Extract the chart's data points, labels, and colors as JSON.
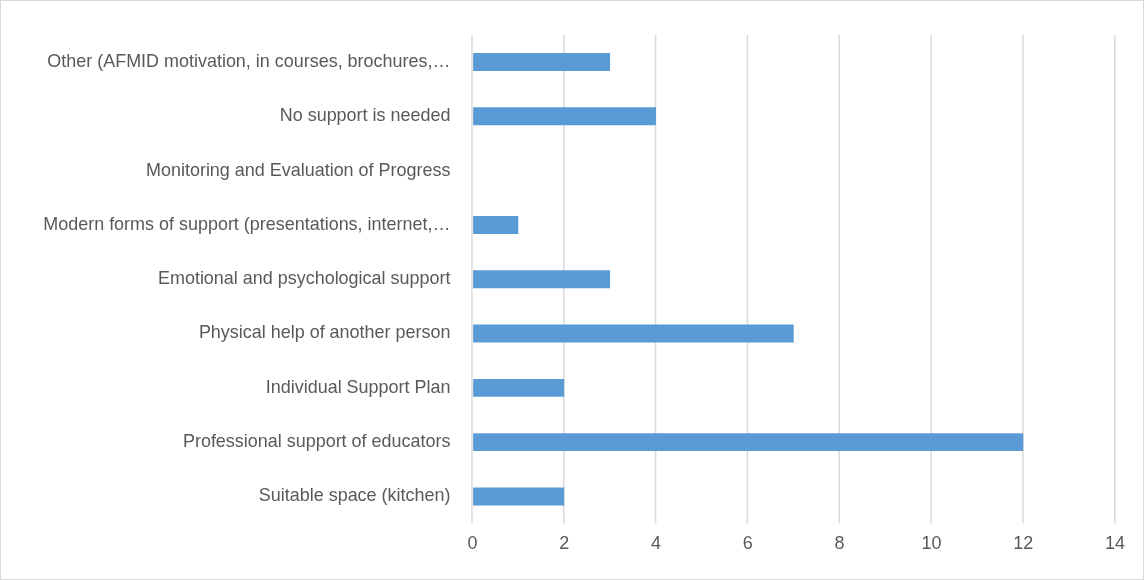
{
  "chart_data": {
    "type": "bar",
    "orientation": "horizontal",
    "categories": [
      "Other (AFMID motivation, in courses, brochures,…",
      "No support is needed",
      "Monitoring and Evaluation of Progress",
      "Modern forms of support (presentations, internet,…",
      "Emotional and psychological support",
      "Physical help of another person",
      "Individual Support Plan",
      "Professional support of educators",
      "Suitable space (kitchen)"
    ],
    "values": [
      3,
      4,
      0,
      1,
      3,
      7,
      2,
      12,
      2
    ],
    "color": "#5b9bd5",
    "xlim": [
      0,
      14
    ],
    "xticks": [
      0,
      2,
      4,
      6,
      8,
      10,
      12,
      14
    ],
    "grid": "x",
    "legend": false
  }
}
